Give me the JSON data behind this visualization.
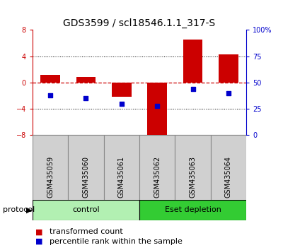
{
  "title": "GDS3599 / scl18546.1.1_317-S",
  "samples": [
    "GSM435059",
    "GSM435060",
    "GSM435061",
    "GSM435062",
    "GSM435063",
    "GSM435064"
  ],
  "red_values": [
    1.2,
    0.8,
    -2.2,
    -8.8,
    6.5,
    4.3
  ],
  "blue_values": [
    38,
    35,
    30,
    28,
    44,
    40
  ],
  "ylim_left": [
    -8,
    8
  ],
  "ylim_right": [
    0,
    100
  ],
  "yticks_left": [
    -8,
    -4,
    0,
    4,
    8
  ],
  "yticks_right": [
    0,
    25,
    50,
    75,
    100
  ],
  "ytick_labels_right": [
    "0",
    "25",
    "50",
    "75",
    "100%"
  ],
  "groups": [
    {
      "label": "control",
      "indices": [
        0,
        1,
        2
      ],
      "color": "#b2f0b2"
    },
    {
      "label": "Eset depletion",
      "indices": [
        3,
        4,
        5
      ],
      "color": "#33cc33"
    }
  ],
  "protocol_label": "protocol",
  "legend_red_label": "transformed count",
  "legend_blue_label": "percentile rank within the sample",
  "bar_color": "#cc0000",
  "dot_color": "#0000cc",
  "bar_width": 0.55,
  "plot_bg": "#ffffff",
  "zero_line_color": "#cc0000",
  "title_fontsize": 10,
  "tick_fontsize": 7,
  "legend_fontsize": 8,
  "sample_label_fontsize": 7,
  "group_label_fontsize": 8,
  "protocol_fontsize": 8
}
